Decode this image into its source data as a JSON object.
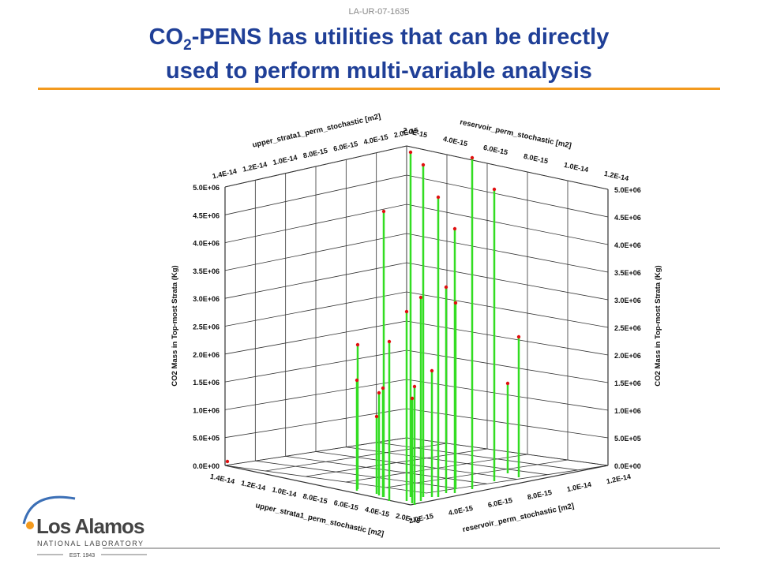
{
  "header": {
    "report_id": "LA-UR-07-1635"
  },
  "title": {
    "line1_pre": "CO",
    "line1_sub": "2",
    "line1_post": "-PENS has utilities that can be directly",
    "line2": "used to perform multi-variable analysis"
  },
  "figure": {
    "z_axis_title": "CO2 Mass in Top-most Strata (Kg)",
    "z_ticks": [
      "0.0E+00",
      "5.0E+05",
      "1.0E+06",
      "1.5E+06",
      "2.0E+06",
      "2.5E+06",
      "3.0E+06",
      "3.5E+06",
      "4.0E+06",
      "4.5E+06",
      "5.0E+06"
    ],
    "x_axis_title": "upper_strata1_perm_stochastic [m2]",
    "x_ticks": [
      "2.0E-15",
      "4.0E-15",
      "6.0E-15",
      "8.0E-15",
      "1.0E-14",
      "1.2E-14",
      "1.4E-14"
    ],
    "y_axis_title": "reservoir_perm_stochastic [m2]",
    "y_ticks": [
      "2.0E-15",
      "4.0E-15",
      "6.0E-15",
      "8.0E-15",
      "1.0E-14",
      "1.2E-14"
    ]
  },
  "logo": {
    "name": "Los Alamos",
    "subtitle": "NATIONAL LABORATORY",
    "established": "EST. 1943"
  }
}
